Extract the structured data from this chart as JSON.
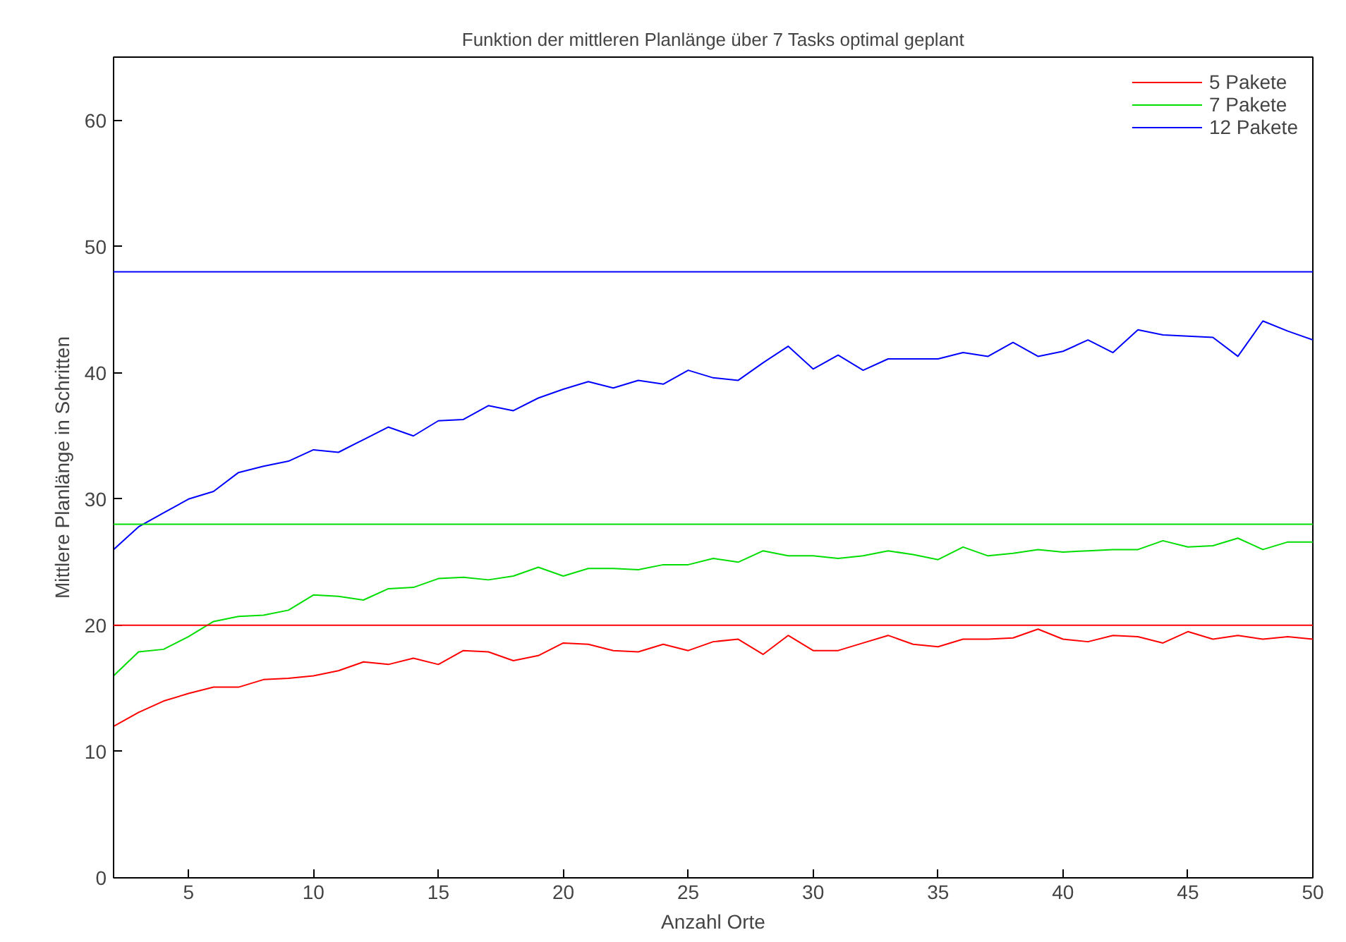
{
  "chart_data": {
    "type": "line",
    "title": "Funktion der mittleren Planlänge über 7 Tasks optimal geplant",
    "xlabel": "Anzahl Orte",
    "ylabel": "Mittlere Planlänge in Schritten",
    "x": [
      2,
      3,
      4,
      5,
      6,
      7,
      8,
      9,
      10,
      11,
      12,
      13,
      14,
      15,
      16,
      17,
      18,
      19,
      20,
      21,
      22,
      23,
      24,
      25,
      26,
      27,
      28,
      29,
      30,
      31,
      32,
      33,
      34,
      35,
      36,
      37,
      38,
      39,
      40,
      41,
      42,
      43,
      44,
      45,
      46,
      47,
      48,
      49,
      50
    ],
    "series": [
      {
        "name": "5 Pakete",
        "color": "#ff0000",
        "values": [
          12.0,
          13.1,
          14.0,
          14.6,
          15.1,
          15.1,
          15.7,
          15.8,
          16.0,
          16.4,
          17.1,
          16.9,
          17.4,
          16.9,
          18.0,
          17.9,
          17.2,
          17.6,
          18.6,
          18.5,
          18.0,
          17.9,
          18.5,
          18.0,
          18.7,
          18.9,
          17.7,
          19.2,
          18.0,
          18.0,
          18.6,
          19.2,
          18.5,
          18.3,
          18.9,
          18.9,
          19.0,
          19.7,
          18.9,
          18.7,
          19.2,
          19.1,
          18.6,
          19.5,
          18.9,
          19.2,
          18.9,
          19.1,
          18.9
        ]
      },
      {
        "name": "7 Pakete",
        "color": "#00dd00",
        "values": [
          16.0,
          17.9,
          18.1,
          19.1,
          20.3,
          20.7,
          20.8,
          21.2,
          22.4,
          22.3,
          22.0,
          22.9,
          23.0,
          23.7,
          23.8,
          23.6,
          23.9,
          24.6,
          23.9,
          24.5,
          24.5,
          24.4,
          24.8,
          24.8,
          25.3,
          25.0,
          25.9,
          25.5,
          25.5,
          25.3,
          25.5,
          25.9,
          25.6,
          25.2,
          26.2,
          25.5,
          25.7,
          26.0,
          25.8,
          25.9,
          26.0,
          26.0,
          26.7,
          26.2,
          26.3,
          26.9,
          26.0,
          26.6,
          26.6
        ]
      },
      {
        "name": "12 Pakete",
        "color": "#0000ff",
        "values": [
          26.0,
          27.8,
          28.9,
          30.0,
          30.6,
          32.1,
          32.6,
          33.0,
          33.9,
          33.7,
          34.7,
          35.7,
          35.0,
          36.2,
          36.3,
          37.4,
          37.0,
          38.0,
          38.7,
          39.3,
          38.8,
          39.4,
          39.1,
          40.2,
          39.6,
          39.4,
          40.8,
          42.1,
          40.3,
          41.4,
          40.2,
          41.1,
          41.1,
          41.1,
          41.6,
          41.3,
          42.4,
          41.3,
          41.7,
          42.6,
          41.6,
          43.4,
          43.0,
          42.9,
          42.8,
          41.3,
          44.1,
          43.3,
          42.6
        ]
      }
    ],
    "ref_lines": [
      {
        "axis": "y",
        "value": 20,
        "color": "#ff0000"
      },
      {
        "axis": "y",
        "value": 28,
        "color": "#00dd00"
      },
      {
        "axis": "y",
        "value": 48,
        "color": "#0000ff"
      }
    ],
    "xlim": [
      2,
      50
    ],
    "xticks": [
      5,
      10,
      15,
      20,
      25,
      30,
      35,
      40,
      45,
      50
    ],
    "ylim": [
      0,
      65
    ],
    "yticks": [
      0,
      10,
      20,
      30,
      40,
      50,
      60
    ],
    "grid": false,
    "legend": "top right",
    "marker": "none",
    "line_style": "solid"
  }
}
